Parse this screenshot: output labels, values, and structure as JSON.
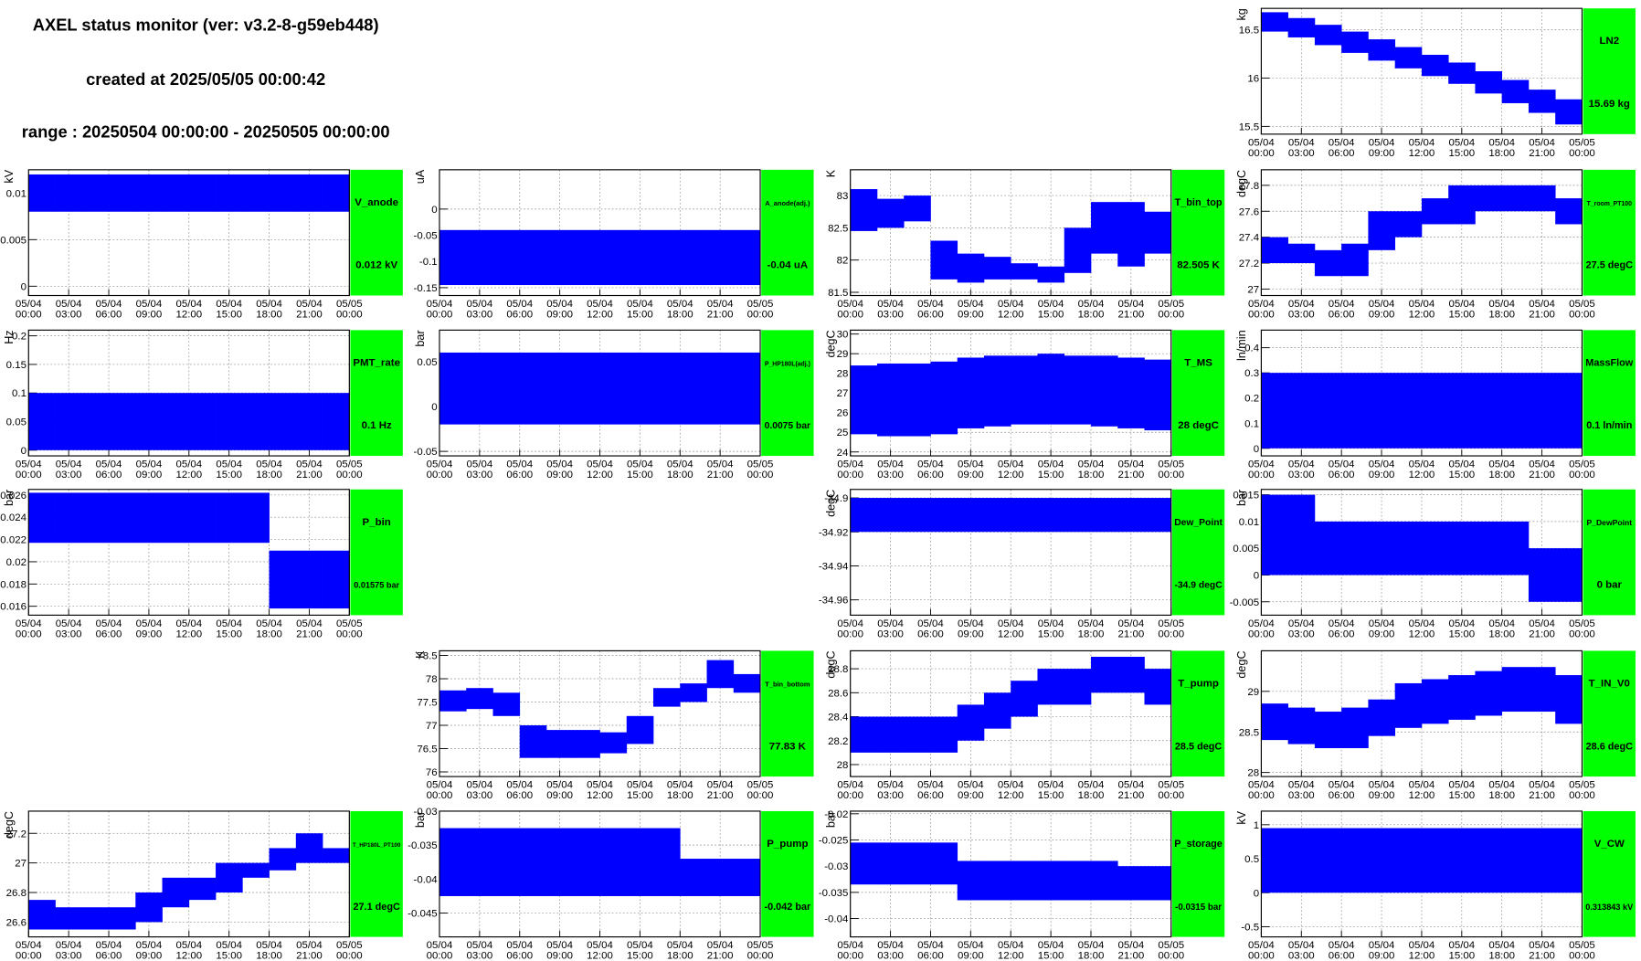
{
  "header": {
    "title": "AXEL status monitor (ver: v3.2-8-g59eb448)",
    "created": "created at 2025/05/05 00:00:42",
    "range": "range : 20250504 00:00:00 - 20250505 00:00:00"
  },
  "time_axis": {
    "xlim": [
      0,
      24
    ],
    "xticks": [
      {
        "value": 0,
        "label": [
          "05/04",
          "00:00"
        ]
      },
      {
        "value": 3,
        "label": [
          "05/04",
          "03:00"
        ]
      },
      {
        "value": 6,
        "label": [
          "05/04",
          "06:00"
        ]
      },
      {
        "value": 9,
        "label": [
          "05/04",
          "09:00"
        ]
      },
      {
        "value": 12,
        "label": [
          "05/04",
          "12:00"
        ]
      },
      {
        "value": 15,
        "label": [
          "05/04",
          "15:00"
        ]
      },
      {
        "value": 18,
        "label": [
          "05/04",
          "18:00"
        ]
      },
      {
        "value": 21,
        "label": [
          "05/04",
          "21:00"
        ]
      },
      {
        "value": 24,
        "label": [
          "05/05",
          "00:00"
        ]
      }
    ]
  },
  "chart_data": [
    {
      "type": "band",
      "col": 3,
      "row": 0,
      "name": "LN2",
      "current": "15.69 kg",
      "ylabel": "kg",
      "color": "#0000ff",
      "box_color": "#00ff00",
      "grid": true,
      "x": [
        0,
        2,
        4,
        6,
        8,
        10,
        12,
        14,
        16,
        18,
        20,
        22
      ],
      "ylim": [
        15.42,
        16.72
      ],
      "yticks": [
        15.5,
        16,
        16.5
      ],
      "high": [
        16.68,
        16.62,
        16.55,
        16.48,
        16.4,
        16.32,
        16.24,
        16.16,
        16.07,
        15.98,
        15.88,
        15.78
      ],
      "low": [
        16.48,
        16.42,
        16.34,
        16.26,
        16.18,
        16.1,
        16.02,
        15.94,
        15.84,
        15.74,
        15.64,
        15.52
      ]
    },
    {
      "type": "band",
      "col": 0,
      "row": 1,
      "name": "V_anode",
      "current": "0.012 kV",
      "ylabel": "kV",
      "color": "#0000ff",
      "box_color": "#00ff00",
      "grid": true,
      "x": [
        0,
        2,
        4,
        6,
        8,
        10,
        12,
        14,
        16,
        18,
        20,
        22
      ],
      "ylim": [
        -0.001,
        0.0125
      ],
      "yticks": [
        0,
        0.005,
        0.01
      ],
      "high": [
        0.012,
        0.012,
        0.012,
        0.012,
        0.012,
        0.012,
        0.012,
        0.012,
        0.012,
        0.012,
        0.012,
        0.012
      ],
      "low": [
        0.008,
        0.008,
        0.008,
        0.008,
        0.008,
        0.008,
        0.008,
        0.008,
        0.008,
        0.008,
        0.008,
        0.008
      ]
    },
    {
      "type": "band",
      "col": 1,
      "row": 1,
      "name": "A_anode(adj.)",
      "current": "-0.04 uA",
      "ylabel": "uA",
      "color": "#0000ff",
      "box_color": "#00ff00",
      "grid": true,
      "x": [
        0,
        2,
        4,
        6,
        8,
        10,
        12,
        14,
        16,
        18,
        20,
        22
      ],
      "ylim": [
        -0.165,
        0.075
      ],
      "yticks": [
        -0.15,
        -0.1,
        -0.05,
        0
      ],
      "high": [
        -0.04,
        -0.04,
        -0.04,
        -0.04,
        -0.04,
        -0.04,
        -0.04,
        -0.04,
        -0.04,
        -0.04,
        -0.04,
        -0.04
      ],
      "low": [
        -0.145,
        -0.145,
        -0.145,
        -0.145,
        -0.145,
        -0.145,
        -0.145,
        -0.145,
        -0.145,
        -0.145,
        -0.145,
        -0.145
      ]
    },
    {
      "type": "band",
      "col": 2,
      "row": 1,
      "name": "T_bin_top",
      "current": "82.505 K",
      "ylabel": "K",
      "color": "#0000ff",
      "box_color": "#00ff00",
      "grid": true,
      "x": [
        0,
        2,
        4,
        6,
        8,
        10,
        12,
        14,
        16,
        18,
        20,
        22
      ],
      "ylim": [
        81.45,
        83.4
      ],
      "yticks": [
        81.5,
        82,
        82.5,
        83
      ],
      "high": [
        83.1,
        82.95,
        83.0,
        82.3,
        82.1,
        82.05,
        81.95,
        81.9,
        82.5,
        82.9,
        82.9,
        82.75
      ],
      "low": [
        82.45,
        82.5,
        82.6,
        81.7,
        81.65,
        81.7,
        81.7,
        81.65,
        81.8,
        82.1,
        81.9,
        82.1
      ]
    },
    {
      "type": "band",
      "col": 3,
      "row": 1,
      "name": "T_room_PT100",
      "current": "27.5 degC",
      "ylabel": "degC",
      "color": "#0000ff",
      "box_color": "#00ff00",
      "grid": true,
      "x": [
        0,
        2,
        4,
        6,
        8,
        10,
        12,
        14,
        16,
        18,
        20,
        22
      ],
      "ylim": [
        26.95,
        27.92
      ],
      "yticks": [
        27,
        27.2,
        27.4,
        27.6,
        27.8
      ],
      "high": [
        27.4,
        27.35,
        27.3,
        27.35,
        27.6,
        27.6,
        27.7,
        27.8,
        27.8,
        27.8,
        27.8,
        27.7
      ],
      "low": [
        27.2,
        27.2,
        27.1,
        27.1,
        27.3,
        27.4,
        27.5,
        27.5,
        27.6,
        27.6,
        27.6,
        27.5
      ]
    },
    {
      "type": "band",
      "col": 0,
      "row": 2,
      "name": "PMT_rate",
      "current": "0.1 Hz",
      "ylabel": "Hz",
      "color": "#0000ff",
      "box_color": "#00ff00",
      "grid": true,
      "x": [
        0,
        2,
        4,
        6,
        8,
        10,
        12,
        14,
        16,
        18,
        20,
        22
      ],
      "ylim": [
        -0.01,
        0.21
      ],
      "yticks": [
        0,
        0.05,
        0.1,
        0.15,
        0.2
      ],
      "high": [
        0.1,
        0.1,
        0.1,
        0.1,
        0.1,
        0.1,
        0.1,
        0.1,
        0.1,
        0.1,
        0.1,
        0.1
      ],
      "low": [
        0,
        0,
        0,
        0,
        0,
        0,
        0,
        0,
        0,
        0,
        0,
        0
      ]
    },
    {
      "type": "band",
      "col": 1,
      "row": 2,
      "name": "P_HP180L(adj.)",
      "current": "0.0075 bar",
      "ylabel": "bar",
      "color": "#0000ff",
      "box_color": "#00ff00",
      "grid": true,
      "x": [
        0,
        2,
        4,
        6,
        8,
        10,
        12,
        14,
        16,
        18,
        20,
        22
      ],
      "ylim": [
        -0.055,
        0.085
      ],
      "yticks": [
        -0.05,
        0,
        0.05
      ],
      "high": [
        0.06,
        0.06,
        0.06,
        0.06,
        0.06,
        0.06,
        0.06,
        0.06,
        0.06,
        0.06,
        0.06,
        0.06
      ],
      "low": [
        -0.02,
        -0.02,
        -0.02,
        -0.02,
        -0.02,
        -0.02,
        -0.02,
        -0.02,
        -0.02,
        -0.02,
        -0.02,
        -0.02
      ]
    },
    {
      "type": "band",
      "col": 2,
      "row": 2,
      "name": "T_MS",
      "current": "28 degC",
      "ylabel": "degC",
      "color": "#0000ff",
      "box_color": "#00ff00",
      "grid": true,
      "x": [
        0,
        2,
        4,
        6,
        8,
        10,
        12,
        14,
        16,
        18,
        20,
        22
      ],
      "ylim": [
        23.8,
        30.2
      ],
      "yticks": [
        24,
        25,
        26,
        27,
        28,
        29,
        30
      ],
      "high": [
        28.4,
        28.5,
        28.5,
        28.6,
        28.8,
        28.9,
        28.9,
        29.0,
        28.9,
        28.9,
        28.8,
        28.7
      ],
      "low": [
        24.9,
        24.8,
        24.8,
        24.9,
        25.2,
        25.3,
        25.4,
        25.4,
        25.4,
        25.3,
        25.2,
        25.1
      ]
    },
    {
      "type": "band",
      "col": 3,
      "row": 2,
      "name": "MassFlow",
      "current": "0.1 ln/min",
      "ylabel": "ln/min",
      "color": "#0000ff",
      "box_color": "#00ff00",
      "grid": true,
      "x": [
        0,
        2,
        4,
        6,
        8,
        10,
        12,
        14,
        16,
        18,
        20,
        22
      ],
      "ylim": [
        -0.03,
        0.47
      ],
      "yticks": [
        0,
        0.1,
        0.2,
        0.3,
        0.4
      ],
      "high": [
        0.3,
        0.3,
        0.3,
        0.3,
        0.3,
        0.3,
        0.3,
        0.3,
        0.3,
        0.3,
        0.3,
        0.3
      ],
      "low": [
        0,
        0,
        0,
        0,
        0,
        0,
        0,
        0,
        0,
        0,
        0,
        0
      ]
    },
    {
      "type": "band",
      "col": 0,
      "row": 3,
      "name": "P_bin",
      "current": "0.01575 bar",
      "ylabel": "bar",
      "color": "#0000ff",
      "box_color": "#00ff00",
      "grid": true,
      "x": [
        0,
        2,
        4,
        6,
        8,
        10,
        12,
        14,
        16,
        18,
        20,
        22
      ],
      "ylim": [
        0.0152,
        0.0265
      ],
      "yticks": [
        0.016,
        0.018,
        0.02,
        0.022,
        0.024,
        0.026
      ],
      "high": [
        0.0262,
        0.0262,
        0.0262,
        0.0262,
        0.0262,
        0.0262,
        0.0262,
        0.0262,
        0.0262,
        0.021,
        0.021,
        0.021
      ],
      "low": [
        0.0217,
        0.0217,
        0.0217,
        0.0217,
        0.0217,
        0.0217,
        0.0217,
        0.0217,
        0.0217,
        0.0158,
        0.0158,
        0.0158
      ]
    },
    {
      "type": "band",
      "col": 2,
      "row": 3,
      "name": "Dew_Point",
      "current": "-34.9 degC",
      "ylabel": "degC",
      "color": "#0000ff",
      "box_color": "#00ff00",
      "grid": true,
      "x": [
        0,
        2,
        4,
        6,
        8,
        10,
        12,
        14,
        16,
        18,
        20,
        22
      ],
      "ylim": [
        -34.969,
        -34.895
      ],
      "yticks": [
        -34.96,
        -34.94,
        -34.92,
        -34.9
      ],
      "high": [
        -34.9,
        -34.9,
        -34.9,
        -34.9,
        -34.9,
        -34.9,
        -34.9,
        -34.9,
        -34.9,
        -34.9,
        -34.9,
        -34.9
      ],
      "low": [
        -34.92,
        -34.92,
        -34.92,
        -34.92,
        -34.92,
        -34.92,
        -34.92,
        -34.92,
        -34.92,
        -34.92,
        -34.92,
        -34.92
      ]
    },
    {
      "type": "band",
      "col": 3,
      "row": 3,
      "name": "P_DewPoint",
      "current": "0 bar",
      "ylabel": "bar",
      "color": "#0000ff",
      "box_color": "#00ff00",
      "grid": true,
      "x": [
        0,
        2,
        4,
        6,
        8,
        10,
        12,
        14,
        16,
        18,
        20,
        22
      ],
      "ylim": [
        -0.0075,
        0.016
      ],
      "yticks": [
        -0.005,
        0,
        0.005,
        0.01,
        0.015
      ],
      "high": [
        0.015,
        0.015,
        0.01,
        0.01,
        0.01,
        0.01,
        0.01,
        0.01,
        0.01,
        0.01,
        0.005,
        0.005
      ],
      "low": [
        0,
        0,
        0,
        0,
        0,
        0,
        0,
        0,
        0,
        0,
        -0.005,
        -0.005
      ]
    },
    {
      "type": "band",
      "col": 1,
      "row": 4,
      "name": "T_bin_bottom",
      "current": "77.83 K",
      "ylabel": "K",
      "color": "#0000ff",
      "box_color": "#00ff00",
      "grid": true,
      "x": [
        0,
        2,
        4,
        6,
        8,
        10,
        12,
        14,
        16,
        18,
        20,
        22
      ],
      "ylim": [
        75.9,
        78.6
      ],
      "yticks": [
        76,
        76.5,
        77,
        77.5,
        78,
        78.5
      ],
      "high": [
        77.75,
        77.8,
        77.7,
        77.0,
        76.9,
        76.9,
        76.85,
        77.2,
        77.8,
        77.9,
        78.4,
        78.1
      ],
      "low": [
        77.3,
        77.35,
        77.2,
        76.3,
        76.3,
        76.3,
        76.4,
        76.6,
        77.4,
        77.5,
        77.8,
        77.7
      ]
    },
    {
      "type": "band",
      "col": 2,
      "row": 4,
      "name": "T_pump",
      "current": "28.5 degC",
      "ylabel": "degC",
      "color": "#0000ff",
      "box_color": "#00ff00",
      "grid": true,
      "x": [
        0,
        2,
        4,
        6,
        8,
        10,
        12,
        14,
        16,
        18,
        20,
        22
      ],
      "ylim": [
        27.9,
        28.95
      ],
      "yticks": [
        28,
        28.2,
        28.4,
        28.6,
        28.8
      ],
      "high": [
        28.4,
        28.4,
        28.4,
        28.4,
        28.5,
        28.6,
        28.7,
        28.8,
        28.8,
        28.9,
        28.9,
        28.8
      ],
      "low": [
        28.1,
        28.1,
        28.1,
        28.1,
        28.2,
        28.3,
        28.4,
        28.5,
        28.5,
        28.6,
        28.6,
        28.5
      ]
    },
    {
      "type": "band",
      "col": 3,
      "row": 4,
      "name": "T_IN_V0",
      "current": "28.6 degC",
      "ylabel": "degC",
      "color": "#0000ff",
      "box_color": "#00ff00",
      "grid": true,
      "x": [
        0,
        2,
        4,
        6,
        8,
        10,
        12,
        14,
        16,
        18,
        20,
        22
      ],
      "ylim": [
        27.95,
        29.5
      ],
      "yticks": [
        28,
        28.5,
        29
      ],
      "high": [
        28.85,
        28.8,
        28.75,
        28.8,
        28.9,
        29.1,
        29.15,
        29.2,
        29.25,
        29.3,
        29.3,
        29.2
      ],
      "low": [
        28.4,
        28.35,
        28.3,
        28.3,
        28.45,
        28.55,
        28.6,
        28.65,
        28.7,
        28.75,
        28.75,
        28.6
      ]
    },
    {
      "type": "band",
      "col": 0,
      "row": 5,
      "name": "T_HP180L_PT100",
      "current": "27.1 degC",
      "ylabel": "degC",
      "color": "#0000ff",
      "box_color": "#00ff00",
      "grid": true,
      "x": [
        0,
        2,
        4,
        6,
        8,
        10,
        12,
        14,
        16,
        18,
        20,
        22
      ],
      "ylim": [
        26.5,
        27.35
      ],
      "yticks": [
        26.6,
        26.8,
        27,
        27.2
      ],
      "high": [
        26.75,
        26.7,
        26.7,
        26.7,
        26.8,
        26.9,
        26.9,
        27.0,
        27.0,
        27.1,
        27.2,
        27.1
      ],
      "low": [
        26.55,
        26.55,
        26.55,
        26.55,
        26.6,
        26.7,
        26.75,
        26.8,
        26.9,
        26.95,
        27.0,
        27.0
      ]
    },
    {
      "type": "band",
      "col": 1,
      "row": 5,
      "name": "P_pump",
      "current": "-0.042 bar",
      "ylabel": "bar",
      "color": "#0000ff",
      "box_color": "#00ff00",
      "grid": true,
      "x": [
        0,
        2,
        4,
        6,
        8,
        10,
        12,
        14,
        16,
        18,
        20,
        22
      ],
      "ylim": [
        -0.0485,
        -0.03
      ],
      "yticks": [
        -0.045,
        -0.04,
        -0.035,
        -0.03
      ],
      "high": [
        -0.0325,
        -0.0325,
        -0.0325,
        -0.0325,
        -0.0325,
        -0.0325,
        -0.0325,
        -0.0325,
        -0.0325,
        -0.037,
        -0.037,
        -0.037
      ],
      "low": [
        -0.0425,
        -0.0425,
        -0.0425,
        -0.0425,
        -0.0425,
        -0.0425,
        -0.0425,
        -0.0425,
        -0.0425,
        -0.0425,
        -0.0425,
        -0.0425
      ]
    },
    {
      "type": "band",
      "col": 2,
      "row": 5,
      "name": "P_storage",
      "current": "-0.0315 bar",
      "ylabel": "bar",
      "color": "#0000ff",
      "box_color": "#00ff00",
      "grid": true,
      "x": [
        0,
        2,
        4,
        6,
        8,
        10,
        12,
        14,
        16,
        18,
        20,
        22
      ],
      "ylim": [
        -0.0435,
        -0.0195
      ],
      "yticks": [
        -0.04,
        -0.035,
        -0.03,
        -0.025,
        -0.02
      ],
      "high": [
        -0.0255,
        -0.0255,
        -0.0255,
        -0.0255,
        -0.029,
        -0.029,
        -0.029,
        -0.029,
        -0.029,
        -0.029,
        -0.03,
        -0.03
      ],
      "low": [
        -0.0335,
        -0.0335,
        -0.0335,
        -0.0335,
        -0.0365,
        -0.0365,
        -0.0365,
        -0.0365,
        -0.0365,
        -0.0365,
        -0.0365,
        -0.0365
      ]
    },
    {
      "type": "band",
      "col": 3,
      "row": 5,
      "name": "V_CW",
      "current": "0.313843 kV",
      "ylabel": "kV",
      "color": "#0000ff",
      "box_color": "#00ff00",
      "grid": true,
      "x": [
        0,
        2,
        4,
        6,
        8,
        10,
        12,
        14,
        16,
        18,
        20,
        22
      ],
      "ylim": [
        -0.65,
        1.2
      ],
      "yticks": [
        -0.5,
        0,
        0.5,
        1
      ],
      "high": [
        0.95,
        0.95,
        0.95,
        0.95,
        0.95,
        0.95,
        0.95,
        0.95,
        0.95,
        0.95,
        0.95,
        0.95
      ],
      "low": [
        0,
        0,
        0,
        0,
        0,
        0,
        0,
        0,
        0,
        0,
        0,
        0
      ]
    }
  ]
}
